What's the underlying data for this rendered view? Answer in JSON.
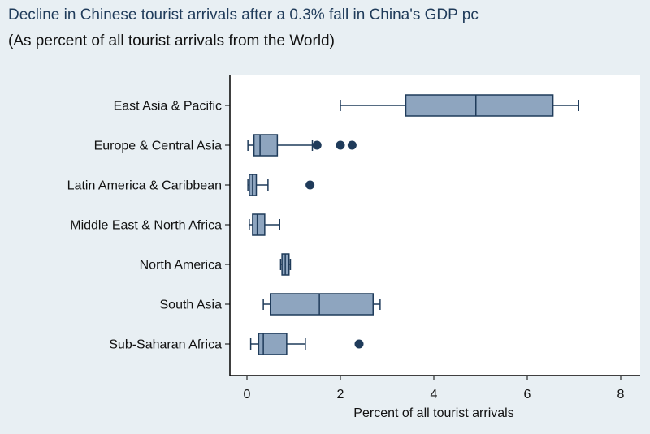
{
  "chart_data": {
    "type": "boxplot",
    "title": "Decline in Chinese tourist arrivals after a 0.3% fall in China's GDP pc",
    "subtitle": "(As percent of all tourist arrivals from the World)",
    "xlabel": "Percent of all tourist arrivals",
    "ylabel": "",
    "xlim": [
      0,
      8
    ],
    "xticks": [
      "0",
      "2",
      "4",
      "6",
      "8"
    ],
    "grid": false,
    "colors": {
      "box_fill": "#8ea5bf",
      "stroke": "#1f3b5a",
      "outlier": "#1f3b5a",
      "plot_bg": "#ffffff",
      "page_bg": "#e8eff3"
    },
    "categories": [
      "East Asia & Pacific",
      "Europe & Central Asia",
      "Latin America & Caribbean",
      "Middle East & North Africa",
      "North America",
      "South Asia",
      "Sub-Saharan Africa"
    ],
    "boxes": [
      {
        "min": 2.0,
        "q1": 3.4,
        "median": 4.9,
        "q3": 6.55,
        "max": 7.1,
        "outliers": []
      },
      {
        "min": 0.02,
        "q1": 0.15,
        "median": 0.28,
        "q3": 0.65,
        "max": 1.4,
        "outliers": [
          1.5,
          2.0,
          2.25
        ]
      },
      {
        "min": 0.02,
        "q1": 0.05,
        "median": 0.12,
        "q3": 0.2,
        "max": 0.45,
        "outliers": [
          1.35
        ]
      },
      {
        "min": 0.05,
        "q1": 0.12,
        "median": 0.22,
        "q3": 0.38,
        "max": 0.7,
        "outliers": []
      },
      {
        "min": 0.72,
        "q1": 0.75,
        "median": 0.82,
        "q3": 0.9,
        "max": 0.93,
        "outliers": []
      },
      {
        "min": 0.35,
        "q1": 0.5,
        "median": 1.55,
        "q3": 2.7,
        "max": 2.85,
        "outliers": []
      },
      {
        "min": 0.08,
        "q1": 0.25,
        "median": 0.35,
        "q3": 0.85,
        "max": 1.25,
        "outliers": [
          2.4
        ]
      }
    ]
  }
}
